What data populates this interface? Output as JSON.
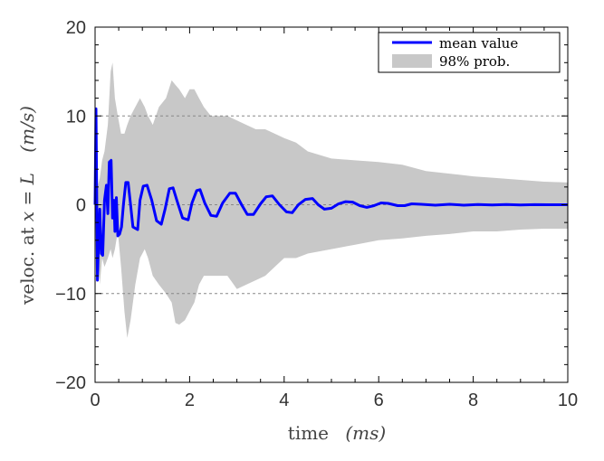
{
  "chart_data": {
    "type": "line",
    "xlabel": "time",
    "xlabel_unit": "(ms)",
    "ylabel_parts": {
      "prefix": "veloc. at ",
      "var1": "x",
      "eq": " = ",
      "var2": "L",
      "unit": "(m/s)"
    },
    "xlim": [
      0,
      10
    ],
    "ylim": [
      -20,
      20
    ],
    "xticks": [
      0,
      2,
      4,
      6,
      8,
      10
    ],
    "yticks": [
      -20,
      -10,
      0,
      10,
      20
    ],
    "x_tick_labels": [
      "0",
      "2",
      "4",
      "6",
      "8",
      "10"
    ],
    "y_tick_labels": [
      "−20",
      "−10",
      "0",
      "10",
      "20"
    ],
    "grid_y": [
      -10,
      10
    ],
    "legend_position": "top-right",
    "legend": [
      {
        "label": "mean value",
        "color": "#0000ff",
        "kind": "line"
      },
      {
        "label": "98% prob.",
        "color": "#c8c8c8",
        "kind": "fill"
      }
    ],
    "series": [
      {
        "name": "mean value",
        "color": "#0000ff",
        "x": [
          0,
          0.02,
          0.05,
          0.08,
          0.1,
          0.13,
          0.16,
          0.2,
          0.24,
          0.27,
          0.3,
          0.34,
          0.37,
          0.4,
          0.42,
          0.45,
          0.48,
          0.52,
          0.56,
          0.6,
          0.65,
          0.7,
          0.75,
          0.8,
          0.9,
          0.95,
          1.02,
          1.1,
          1.2,
          1.3,
          1.4,
          1.48,
          1.57,
          1.65,
          1.73,
          1.85,
          1.97,
          2.05,
          2.15,
          2.22,
          2.32,
          2.45,
          2.57,
          2.7,
          2.85,
          2.97,
          3.1,
          3.22,
          3.35,
          3.5,
          3.62,
          3.75,
          3.9,
          4.05,
          4.17,
          4.3,
          4.45,
          4.6,
          4.72,
          4.85,
          5.0,
          5.15,
          5.3,
          5.45,
          5.6,
          5.75,
          5.9,
          6.05,
          6.2,
          6.4,
          6.55,
          6.7,
          6.9,
          7.2,
          7.5,
          7.8,
          8.1,
          8.4,
          8.7,
          9.0,
          9.3,
          9.6,
          10.0
        ],
        "y": [
          0,
          10.8,
          -8.5,
          -3,
          -0.5,
          -5.5,
          -5.7,
          0.5,
          2.2,
          -1,
          4.8,
          5,
          -1.5,
          0.5,
          -3,
          0.8,
          -3.5,
          -3.3,
          -2.5,
          0,
          2.5,
          2.5,
          0,
          -2.5,
          -2.8,
          0.5,
          2.1,
          2.2,
          0.5,
          -1.8,
          -2.2,
          -0.5,
          1.8,
          1.9,
          0.5,
          -1.5,
          -1.7,
          0.2,
          1.6,
          1.7,
          0.2,
          -1.2,
          -1.3,
          0.2,
          1.3,
          1.3,
          0,
          -1.1,
          -1.1,
          0.1,
          0.9,
          1,
          0,
          -0.8,
          -0.9,
          0,
          0.6,
          0.7,
          0,
          -0.5,
          -0.4,
          0.1,
          0.35,
          0.3,
          -0.1,
          -0.3,
          -0.1,
          0.2,
          0.15,
          -0.1,
          -0.1,
          0.1,
          0.05,
          -0.05,
          0.05,
          -0.05,
          0.03,
          -0.03,
          0.02,
          -0.02,
          0.01,
          0,
          0
        ]
      },
      {
        "name": "98% prob.",
        "color": "#c8c8c8",
        "x": [
          0,
          0.05,
          0.1,
          0.15,
          0.2,
          0.27,
          0.33,
          0.37,
          0.42,
          0.48,
          0.55,
          0.62,
          0.68,
          0.75,
          0.85,
          0.95,
          1.05,
          1.12,
          1.22,
          1.35,
          1.5,
          1.62,
          1.7,
          1.78,
          1.9,
          2.0,
          2.1,
          2.2,
          2.3,
          2.45,
          2.6,
          2.8,
          3.0,
          3.2,
          3.4,
          3.6,
          3.8,
          4.0,
          4.25,
          4.5,
          5.0,
          5.5,
          6.0,
          6.5,
          7.0,
          7.5,
          8.0,
          8.5,
          9.0,
          9.5,
          10.0
        ],
        "upper": [
          0,
          2,
          3,
          5,
          6,
          9,
          15,
          16,
          12,
          10,
          8,
          8,
          9,
          10,
          11,
          12,
          11,
          10,
          9,
          11,
          12,
          14,
          13.5,
          13,
          12,
          13,
          13,
          12,
          11,
          10,
          10,
          10,
          9.5,
          9,
          8.5,
          8.5,
          8,
          7.5,
          7,
          6,
          5.2,
          5,
          4.8,
          4.5,
          3.8,
          3.5,
          3.2,
          3,
          2.8,
          2.6,
          2.5
        ],
        "lower": [
          0,
          -3,
          -9,
          -6,
          -7,
          -6,
          -5,
          -6,
          -5,
          -3,
          -7,
          -12,
          -15,
          -13,
          -9,
          -6,
          -5,
          -6,
          -8,
          -9,
          -10,
          -11,
          -13.3,
          -13.5,
          -13,
          -12,
          -11,
          -9,
          -8,
          -8,
          -8,
          -8,
          -9.5,
          -9,
          -8.5,
          -8,
          -7,
          -6,
          -6,
          -5.5,
          -5,
          -4.5,
          -4,
          -3.8,
          -3.5,
          -3.3,
          -3,
          -3,
          -2.8,
          -2.7,
          -2.7
        ]
      }
    ]
  }
}
